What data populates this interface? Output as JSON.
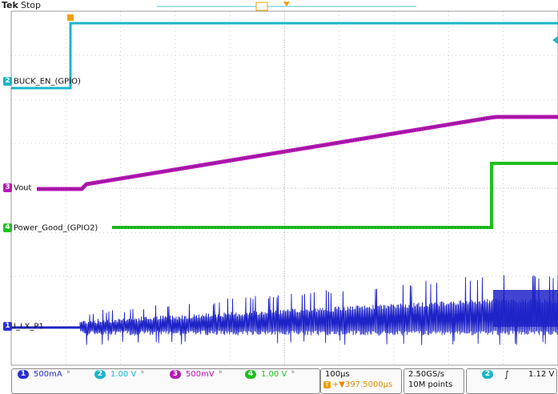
{
  "header": {
    "brand": "Tek",
    "acq_state": "Stop"
  },
  "colors": {
    "ch1": "#1e23c8",
    "ch2": "#1ab6c8",
    "ch3": "#b418b4",
    "ch4": "#1fbf1f",
    "trigger_marker": "#f0a000",
    "grid": "#b0b0b0"
  },
  "channels": [
    {
      "number": "1",
      "name": "I_LX_P1",
      "scale": "500mA",
      "color": "#2a2fd6"
    },
    {
      "number": "2",
      "name": "BUCK_EN_(GPIO)",
      "scale": "1.00 V",
      "color": "#1ab6c8"
    },
    {
      "number": "3",
      "name": "Vout",
      "scale": "500mV",
      "color": "#b418b4"
    },
    {
      "number": "4",
      "name": "Power_Good_(GPIO2)",
      "scale": "1.00 V",
      "color": "#1fbf1f"
    }
  ],
  "timebase": {
    "scale": "100µs",
    "trigger_position": "+▼397.5000µs"
  },
  "acquisition": {
    "sample_rate": "2.50GS/s",
    "record_length": "10M points"
  },
  "trigger": {
    "source": "2",
    "slope_icon": "rising-edge-icon",
    "slope_glyph": "∫",
    "level": "1.12 V"
  },
  "markers": {
    "trigger_time_marker": "T",
    "bw_symbol": "ᵇ"
  }
}
